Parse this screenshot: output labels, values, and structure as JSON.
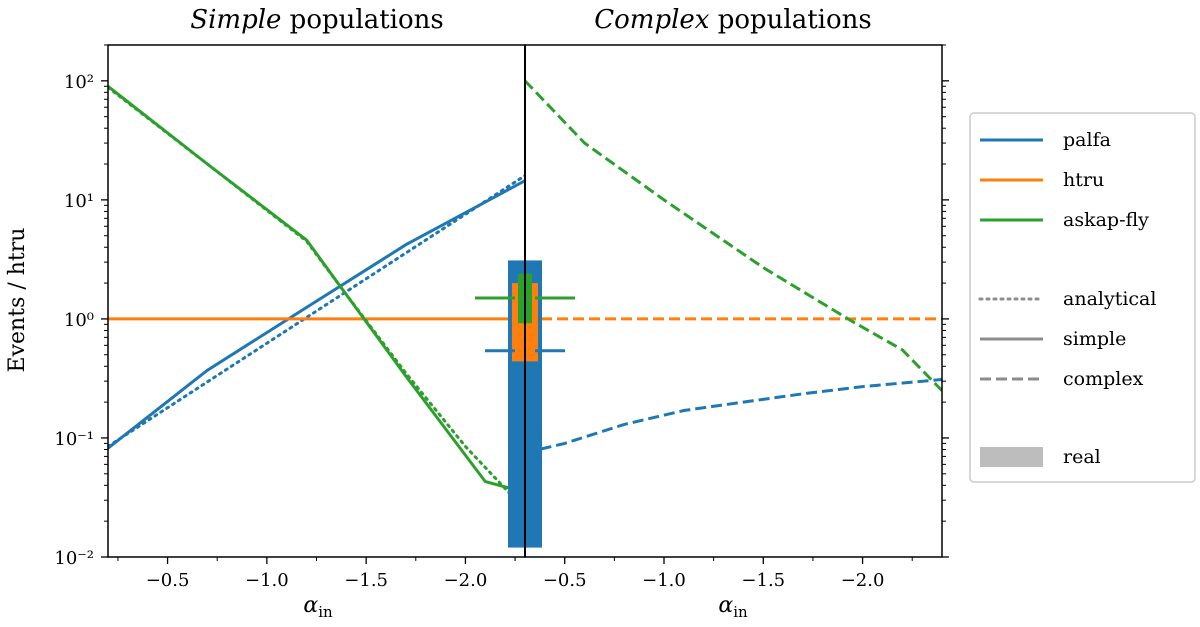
{
  "chart_data": {
    "type": "line",
    "ylabel": "Events / htru",
    "yscale": "log",
    "ylim": [
      0.01,
      200
    ],
    "ytick_labels": [
      "10^-2",
      "10^-1",
      "10^0",
      "10^1",
      "10^2"
    ],
    "panels": [
      {
        "id": "simple",
        "title_italic": "Simple",
        "title_rest": " populations",
        "xlabel": "α",
        "xlabel_sub": "in",
        "xlim": [
          -0.2,
          -2.3
        ],
        "xticks": [
          -0.5,
          -1.0,
          -1.5,
          -2.0
        ],
        "xtick_labels": [
          "−0.5",
          "−1.0",
          "−1.5",
          "−2.0"
        ]
      },
      {
        "id": "complex",
        "title_italic": "Complex",
        "title_rest": " populations",
        "xlabel": "α",
        "xlabel_sub": "in",
        "xlim": [
          -0.3,
          -2.4
        ],
        "xticks": [
          -0.5,
          -1.0,
          -1.5,
          -2.0
        ],
        "xtick_labels": [
          "−0.5",
          "−1.0",
          "−1.5",
          "−2.0"
        ]
      }
    ],
    "series": [
      {
        "name": "palfa",
        "color": "#1f77b4",
        "panel": "simple",
        "style": "analytical",
        "x": [
          -0.2,
          -2.3
        ],
        "y": [
          0.085,
          16
        ]
      },
      {
        "name": "palfa",
        "color": "#1f77b4",
        "panel": "simple",
        "style": "simple",
        "x": [
          -0.2,
          -0.7,
          -1.2,
          -1.7,
          -2.3
        ],
        "y": [
          0.082,
          0.37,
          1.25,
          4.2,
          14.5
        ]
      },
      {
        "name": "htru",
        "color": "#ff7f0e",
        "panel": "simple",
        "style": "simple",
        "x": [
          -0.2,
          -2.3
        ],
        "y": [
          1,
          1
        ]
      },
      {
        "name": "askap-fly",
        "color": "#2ca02c",
        "panel": "simple",
        "style": "analytical",
        "x": [
          -0.2,
          -0.7,
          -1.2,
          -1.4,
          -1.7,
          -2.0,
          -2.3
        ],
        "y": [
          88,
          20,
          4.5,
          1.6,
          0.35,
          0.085,
          0.025
        ]
      },
      {
        "name": "askap-fly",
        "color": "#2ca02c",
        "panel": "simple",
        "style": "simple",
        "x": [
          -0.2,
          -0.7,
          -1.2,
          -1.4,
          -1.7,
          -2.1,
          -2.3
        ],
        "y": [
          90,
          20,
          4.6,
          1.6,
          0.33,
          0.043,
          0.035
        ]
      },
      {
        "name": "palfa",
        "color": "#1f77b4",
        "panel": "complex",
        "style": "complex",
        "x": [
          -0.3,
          -0.5,
          -0.8,
          -1.1,
          -1.4,
          -1.7,
          -2.0,
          -2.4
        ],
        "y": [
          0.075,
          0.09,
          0.13,
          0.17,
          0.2,
          0.235,
          0.27,
          0.31
        ]
      },
      {
        "name": "htru",
        "color": "#ff7f0e",
        "panel": "complex",
        "style": "complex",
        "x": [
          -0.3,
          -2.4
        ],
        "y": [
          1,
          1
        ]
      },
      {
        "name": "askap-fly",
        "color": "#2ca02c",
        "panel": "complex",
        "style": "complex",
        "x": [
          -0.3,
          -0.6,
          -1.0,
          -1.5,
          -1.95,
          -2.2,
          -2.4
        ],
        "y": [
          100,
          30,
          10,
          2.7,
          0.95,
          0.55,
          0.25
        ]
      }
    ],
    "real_bars": [
      {
        "name": "palfa",
        "color": "#1f77b4",
        "ymin": 0.012,
        "ymax": 3.1,
        "width": "wide",
        "marker": 0.54
      },
      {
        "name": "htru",
        "color": "#ff7f0e",
        "ymin": 0.44,
        "ymax": 2.0,
        "width": "medium",
        "marker": 1.0
      },
      {
        "name": "askap-fly",
        "color": "#2ca02c",
        "ymin": 0.92,
        "ymax": 2.4,
        "width": "narrow",
        "marker": 1.5
      }
    ],
    "legend": {
      "position": "right",
      "surveys": [
        {
          "label": "palfa",
          "color": "#1f77b4"
        },
        {
          "label": "htru",
          "color": "#ff7f0e"
        },
        {
          "label": "askap-fly",
          "color": "#2ca02c"
        }
      ],
      "styles": [
        {
          "label": "analytical",
          "dash": "dotted"
        },
        {
          "label": "simple",
          "dash": "solid"
        },
        {
          "label": "complex",
          "dash": "dashed"
        }
      ],
      "real": {
        "label": "real",
        "color": "#bdbdbd"
      }
    }
  }
}
